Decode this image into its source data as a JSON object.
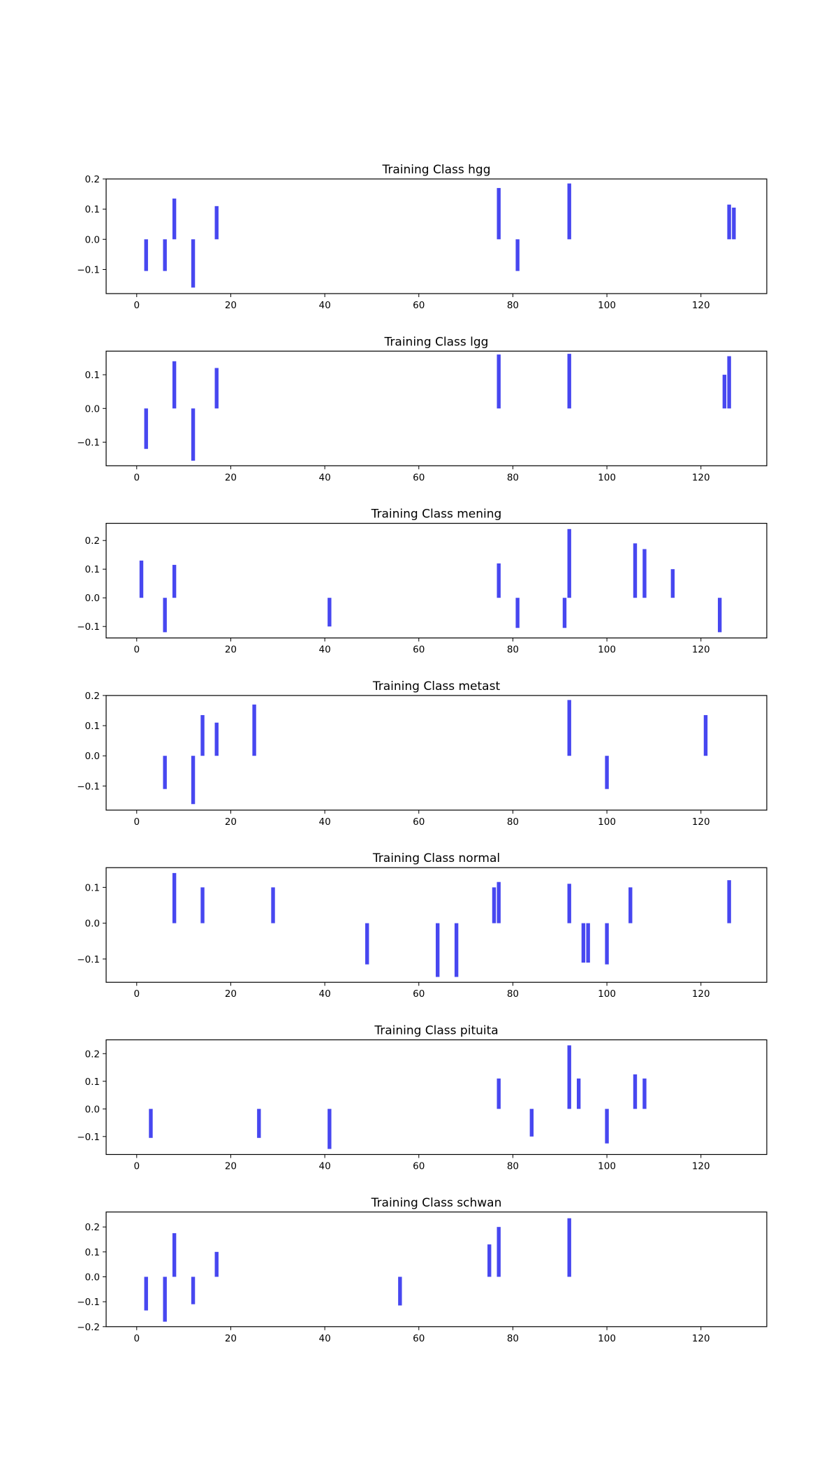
{
  "chart_data": [
    {
      "type": "bar",
      "title": "Training Class hgg",
      "xlabel": "",
      "ylabel": "",
      "xlim": [
        -6.5,
        134
      ],
      "ylim": [
        -0.18,
        0.2
      ],
      "xticks": [
        0,
        20,
        40,
        60,
        80,
        100,
        120
      ],
      "yticks": [
        -0.1,
        0.0,
        0.1,
        0.2
      ],
      "bar_color": "#4747f0",
      "bar_width": 0.8,
      "x": [
        2,
        6,
        8,
        12,
        17,
        77,
        81,
        92,
        126,
        127
      ],
      "values": [
        -0.105,
        -0.105,
        0.135,
        -0.16,
        0.11,
        0.17,
        -0.105,
        0.185,
        0.115,
        0.105
      ],
      "grid": false,
      "legend": "none"
    },
    {
      "type": "bar",
      "title": "Training Class lgg",
      "xlabel": "",
      "ylabel": "",
      "xlim": [
        -6.5,
        134
      ],
      "ylim": [
        -0.17,
        0.17
      ],
      "xticks": [
        0,
        20,
        40,
        60,
        80,
        100,
        120
      ],
      "yticks": [
        -0.1,
        0.0,
        0.1
      ],
      "bar_color": "#4747f0",
      "bar_width": 0.8,
      "x": [
        2,
        8,
        12,
        17,
        77,
        92,
        125,
        126
      ],
      "values": [
        -0.12,
        0.14,
        -0.155,
        0.12,
        0.16,
        0.162,
        0.1,
        0.155
      ],
      "grid": false,
      "legend": "none"
    },
    {
      "type": "bar",
      "title": "Training Class mening",
      "xlabel": "",
      "ylabel": "",
      "xlim": [
        -6.5,
        134
      ],
      "ylim": [
        -0.14,
        0.26
      ],
      "xticks": [
        0,
        20,
        40,
        60,
        80,
        100,
        120
      ],
      "yticks": [
        -0.1,
        0.0,
        0.1,
        0.2
      ],
      "bar_color": "#4747f0",
      "bar_width": 0.8,
      "x": [
        1,
        6,
        8,
        41,
        77,
        81,
        91,
        92,
        106,
        108,
        114,
        124
      ],
      "values": [
        0.13,
        -0.12,
        0.115,
        -0.1,
        0.12,
        -0.105,
        -0.105,
        0.24,
        0.19,
        0.17,
        0.1,
        -0.12
      ],
      "grid": false,
      "legend": "none"
    },
    {
      "type": "bar",
      "title": "Training Class metast",
      "xlabel": "",
      "ylabel": "",
      "xlim": [
        -6.5,
        134
      ],
      "ylim": [
        -0.18,
        0.2
      ],
      "xticks": [
        0,
        20,
        40,
        60,
        80,
        100,
        120
      ],
      "yticks": [
        -0.1,
        0.0,
        0.1,
        0.2
      ],
      "bar_color": "#4747f0",
      "bar_width": 0.8,
      "x": [
        6,
        12,
        14,
        17,
        25,
        92,
        100,
        121
      ],
      "values": [
        -0.11,
        -0.16,
        0.135,
        0.11,
        0.17,
        0.185,
        -0.11,
        0.135
      ],
      "grid": false,
      "legend": "none"
    },
    {
      "type": "bar",
      "title": "Training Class normal",
      "xlabel": "",
      "ylabel": "",
      "xlim": [
        -6.5,
        134
      ],
      "ylim": [
        -0.165,
        0.155
      ],
      "xticks": [
        0,
        20,
        40,
        60,
        80,
        100,
        120
      ],
      "yticks": [
        -0.1,
        0.0,
        0.1
      ],
      "bar_color": "#4747f0",
      "bar_width": 0.8,
      "x": [
        8,
        14,
        29,
        49,
        64,
        68,
        76,
        77,
        92,
        95,
        96,
        100,
        105,
        126
      ],
      "values": [
        0.14,
        0.1,
        0.1,
        -0.115,
        -0.15,
        -0.15,
        0.1,
        0.115,
        0.11,
        -0.11,
        -0.11,
        -0.115,
        0.1,
        0.12
      ],
      "grid": false,
      "legend": "none"
    },
    {
      "type": "bar",
      "title": "Training Class pituita",
      "xlabel": "",
      "ylabel": "",
      "xlim": [
        -6.5,
        134
      ],
      "ylim": [
        -0.165,
        0.25
      ],
      "xticks": [
        0,
        20,
        40,
        60,
        80,
        100,
        120
      ],
      "yticks": [
        -0.1,
        0.0,
        0.1,
        0.2
      ],
      "bar_color": "#4747f0",
      "bar_width": 0.8,
      "x": [
        3,
        26,
        41,
        77,
        84,
        92,
        94,
        100,
        106,
        108
      ],
      "values": [
        -0.105,
        -0.105,
        -0.145,
        0.11,
        -0.1,
        0.23,
        0.11,
        -0.125,
        0.125,
        0.11
      ],
      "grid": false,
      "legend": "none"
    },
    {
      "type": "bar",
      "title": "Training Class schwan",
      "xlabel": "",
      "ylabel": "",
      "xlim": [
        -6.5,
        134
      ],
      "ylim": [
        -0.2,
        0.26
      ],
      "xticks": [
        0,
        20,
        40,
        60,
        80,
        100,
        120
      ],
      "yticks": [
        -0.2,
        -0.1,
        0.0,
        0.1,
        0.2
      ],
      "bar_color": "#4747f0",
      "bar_width": 0.8,
      "x": [
        2,
        6,
        8,
        12,
        17,
        56,
        75,
        77,
        92
      ],
      "values": [
        -0.135,
        -0.18,
        0.175,
        -0.11,
        0.1,
        -0.115,
        0.13,
        0.2,
        0.235
      ],
      "grid": false,
      "legend": "none"
    }
  ]
}
